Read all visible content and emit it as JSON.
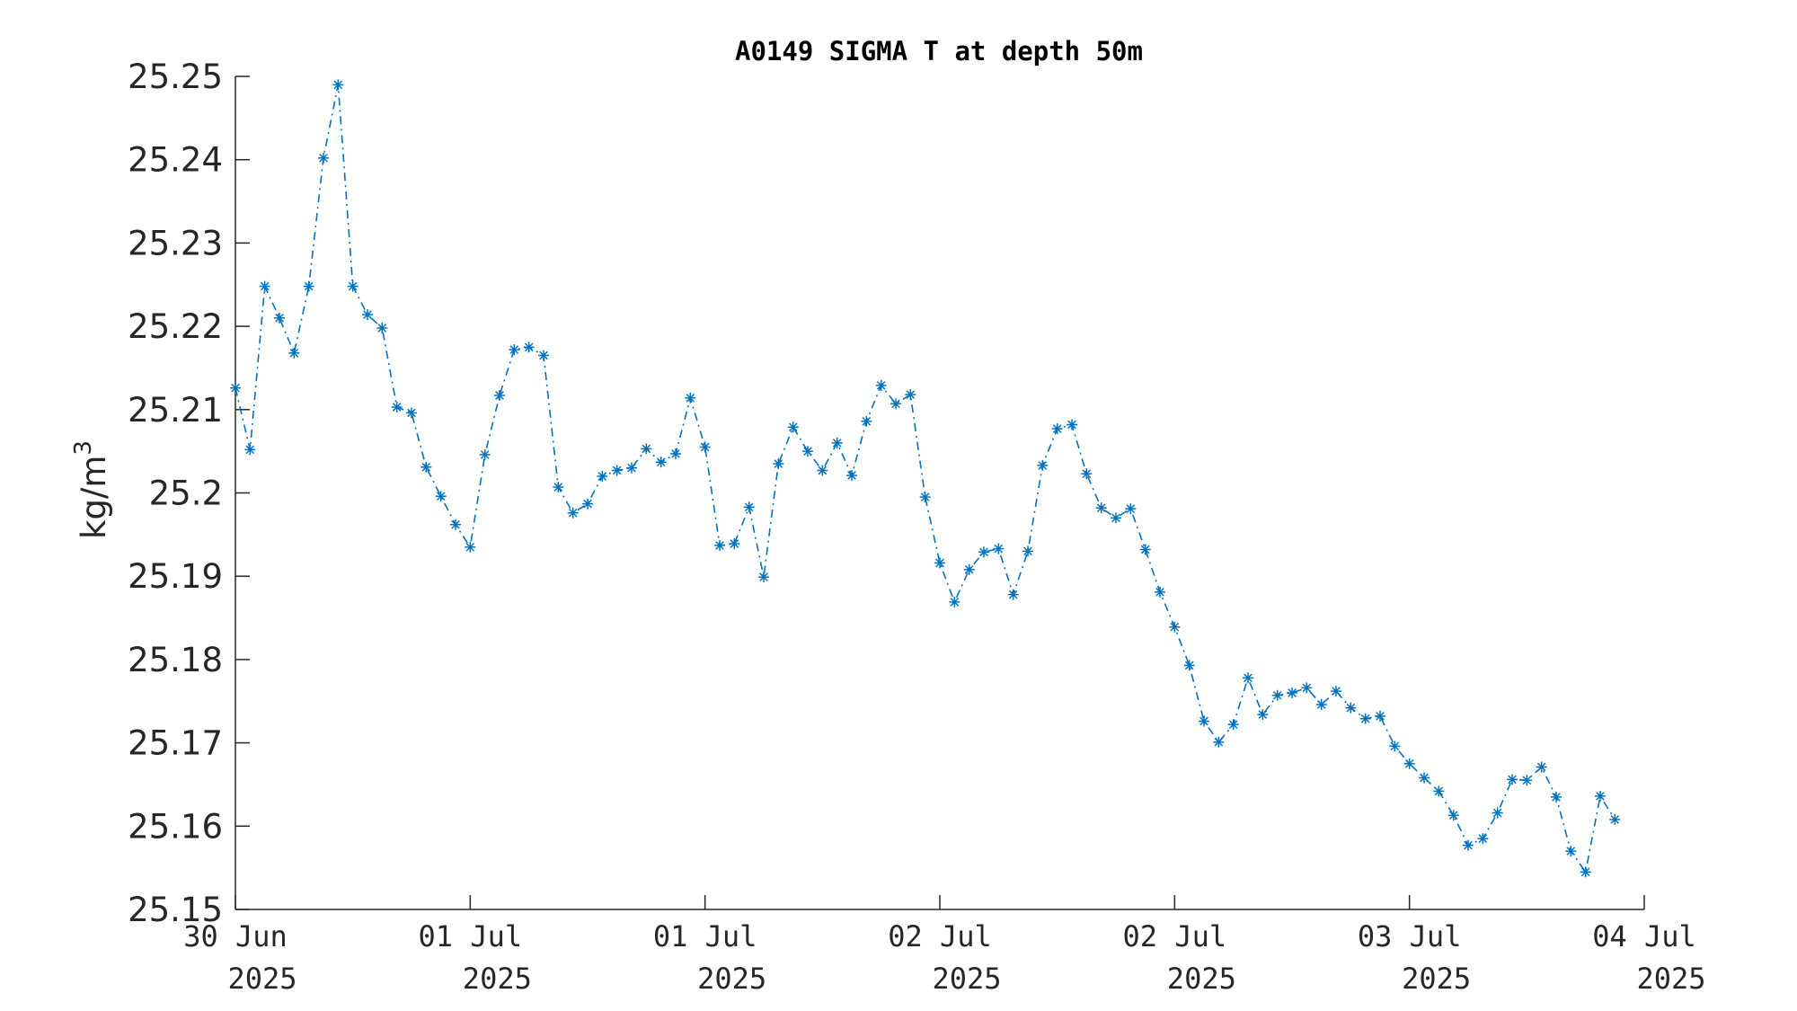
{
  "chart_data": {
    "type": "line",
    "title": "A0149 SIGMA T at depth 50m",
    "xlabel": "",
    "ylabel": "kg/m",
    "ylabel_superscript": "3",
    "ylim": [
      25.15,
      25.25
    ],
    "yticks": [
      "25.15",
      "25.16",
      "25.17",
      "25.18",
      "25.19",
      "25.2",
      "25.21",
      "25.22",
      "25.23",
      "25.24",
      "25.25"
    ],
    "xlim": [
      0,
      96
    ],
    "xticks": [
      {
        "x": 0,
        "day": "30 Jun",
        "year": "2025"
      },
      {
        "x": 16,
        "day": "01 Jul",
        "year": "2025"
      },
      {
        "x": 32,
        "day": "01 Jul",
        "year": "2025"
      },
      {
        "x": 48,
        "day": "02 Jul",
        "year": "2025"
      },
      {
        "x": 64,
        "day": "02 Jul",
        "year": "2025"
      },
      {
        "x": 80,
        "day": "03 Jul",
        "year": "2025"
      },
      {
        "x": 96,
        "day": "04 Jul",
        "year": "2025"
      }
    ],
    "grid": false,
    "line_style": "dash-dot",
    "marker": "asterisk",
    "series_color": "#0072bd",
    "axis_color": "#262626",
    "series": [
      {
        "values": [
          25.2126,
          25.2052,
          25.2248,
          25.221,
          25.2168,
          25.2248,
          25.2402,
          25.249,
          25.2248,
          25.2214,
          25.2198,
          25.2103,
          25.2096,
          25.2031,
          25.1996,
          25.1962,
          25.1935,
          25.2046,
          25.2117,
          25.2172,
          25.2175,
          25.2165,
          25.2007,
          25.1976,
          25.1987,
          25.202,
          25.2027,
          25.203,
          25.2053,
          25.2037,
          25.2047,
          25.2114,
          25.2055,
          25.1937,
          25.1939,
          25.1983,
          25.1899,
          25.2035,
          25.2079,
          25.205,
          25.2027,
          25.206,
          25.2021,
          25.2086,
          25.2129,
          25.2107,
          25.2118,
          25.1995,
          25.1916,
          25.1869,
          25.1908,
          25.1929,
          25.1933,
          25.1878,
          25.193,
          25.2033,
          25.2077,
          25.2082,
          25.2023,
          25.1982,
          25.197,
          25.1981,
          25.1932,
          25.1881,
          25.1839,
          25.1793,
          25.1726,
          25.1701,
          25.1722,
          25.1778,
          25.1734,
          25.1757,
          25.176,
          25.1766,
          25.1746,
          25.1762,
          25.1742,
          25.1729,
          25.1732,
          25.1696,
          25.1675,
          25.1658,
          25.1642,
          25.1613,
          25.1577,
          25.1585,
          25.1616,
          25.1656,
          25.1655,
          25.1671,
          25.1635,
          25.157,
          25.1545,
          25.1636,
          25.1608
        ]
      }
    ]
  }
}
